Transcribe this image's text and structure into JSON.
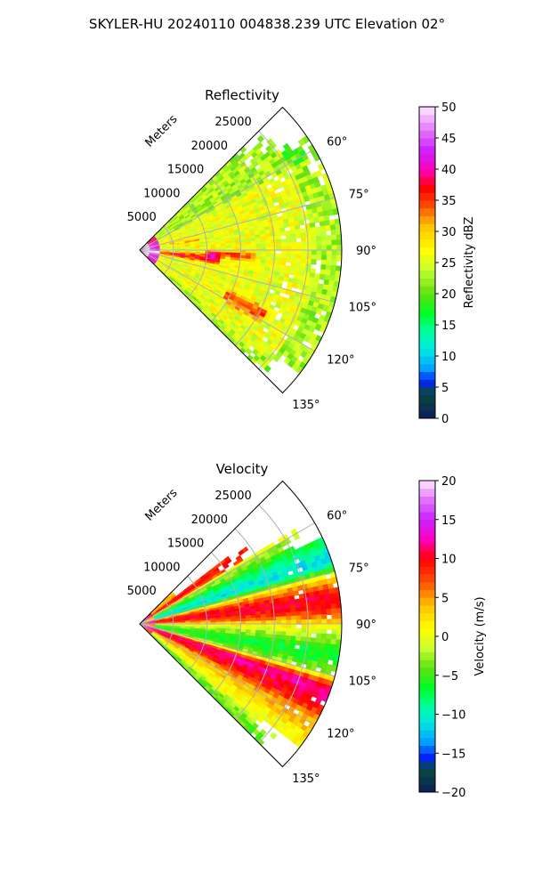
{
  "figure_title": "SKYLER-HU  20240110  004838.239 UTC Elevation 02°",
  "chart_data": [
    {
      "type": "heatmap",
      "projection": "polar-sector",
      "title": "Reflectivity",
      "range_label": "Meters",
      "range_ticks": [
        5000,
        10000,
        15000,
        20000,
        25000
      ],
      "range_max": 30000,
      "azimuth_ticks_deg": [
        60,
        75,
        90,
        105,
        120,
        135
      ],
      "azimuth_range_deg": [
        45,
        135
      ],
      "grid": true,
      "colorbar": {
        "label": "Reflectivity dBZ",
        "min": 0,
        "max": 50,
        "ticks": [
          0,
          5,
          10,
          15,
          20,
          25,
          30,
          35,
          40,
          45,
          50
        ],
        "stops": [
          [
            0,
            "#0b1e60"
          ],
          [
            4,
            "#0a4a3a"
          ],
          [
            6,
            "#0022ff"
          ],
          [
            8,
            "#00a0ff"
          ],
          [
            11,
            "#00e8e0"
          ],
          [
            14,
            "#00ffa0"
          ],
          [
            17,
            "#00ff20"
          ],
          [
            20,
            "#60e010"
          ],
          [
            24,
            "#c8ff30"
          ],
          [
            27,
            "#ffff00"
          ],
          [
            31,
            "#ffc000"
          ],
          [
            34,
            "#ff5000"
          ],
          [
            37,
            "#ff0000"
          ],
          [
            40,
            "#ff00c0"
          ],
          [
            43,
            "#cc20ff"
          ],
          [
            46,
            "#e070ff"
          ],
          [
            50,
            "#ffe8ff"
          ]
        ]
      },
      "field_description": [
        {
          "azimuth_deg": 90,
          "range_km": [
            0,
            30
          ],
          "value_dBZ": 27
        },
        {
          "azimuth_deg": 97,
          "range_km": [
            2,
            12
          ],
          "value_dBZ": 36
        },
        {
          "azimuth_deg": 93,
          "range_km": [
            10,
            17
          ],
          "value_dBZ": 34
        },
        {
          "azimuth_deg": 118,
          "range_km": [
            15,
            20
          ],
          "value_dBZ": 34
        },
        {
          "azimuth_deg": 92,
          "range_km": [
            0,
            2.5
          ],
          "value_dBZ": 42
        }
      ]
    },
    {
      "type": "heatmap",
      "projection": "polar-sector",
      "title": "Velocity",
      "range_label": "Meters",
      "range_ticks": [
        5000,
        10000,
        15000,
        20000,
        25000
      ],
      "range_max": 30000,
      "azimuth_ticks_deg": [
        60,
        75,
        90,
        105,
        120,
        135
      ],
      "azimuth_range_deg": [
        45,
        135
      ],
      "grid": true,
      "colorbar": {
        "label": "Velocity (m/s)",
        "min": -20,
        "max": 20,
        "ticks": [
          -20,
          -15,
          -10,
          -5,
          0,
          5,
          10,
          15,
          20
        ],
        "stops": [
          [
            -20,
            "#0b1e60"
          ],
          [
            -17,
            "#0a4a3a"
          ],
          [
            -15.5,
            "#0022ff"
          ],
          [
            -13.5,
            "#00a0ff"
          ],
          [
            -11,
            "#00e8e0"
          ],
          [
            -9,
            "#00ffa0"
          ],
          [
            -6.5,
            "#00ff20"
          ],
          [
            -4,
            "#60e010"
          ],
          [
            -1.5,
            "#c8ff30"
          ],
          [
            1,
            "#ffff00"
          ],
          [
            4,
            "#ffc000"
          ],
          [
            7,
            "#ff5000"
          ],
          [
            10,
            "#ff0000"
          ],
          [
            12.5,
            "#ff00c0"
          ],
          [
            15,
            "#cc20ff"
          ],
          [
            17.5,
            "#e070ff"
          ],
          [
            20,
            "#ffe8ff"
          ]
        ]
      },
      "field_description": [
        {
          "azimuth_deg": 90,
          "value_ms": 2
        },
        {
          "azimuth_deg": 80,
          "value_ms": 11
        },
        {
          "azimuth_deg": 70,
          "value_ms": -9
        },
        {
          "azimuth_deg": 60,
          "value_ms": 4
        },
        {
          "azimuth_deg": 100,
          "value_ms": -6
        },
        {
          "azimuth_deg": 110,
          "value_ms": 12
        },
        {
          "azimuth_deg": 125,
          "value_ms": 3
        }
      ]
    }
  ]
}
